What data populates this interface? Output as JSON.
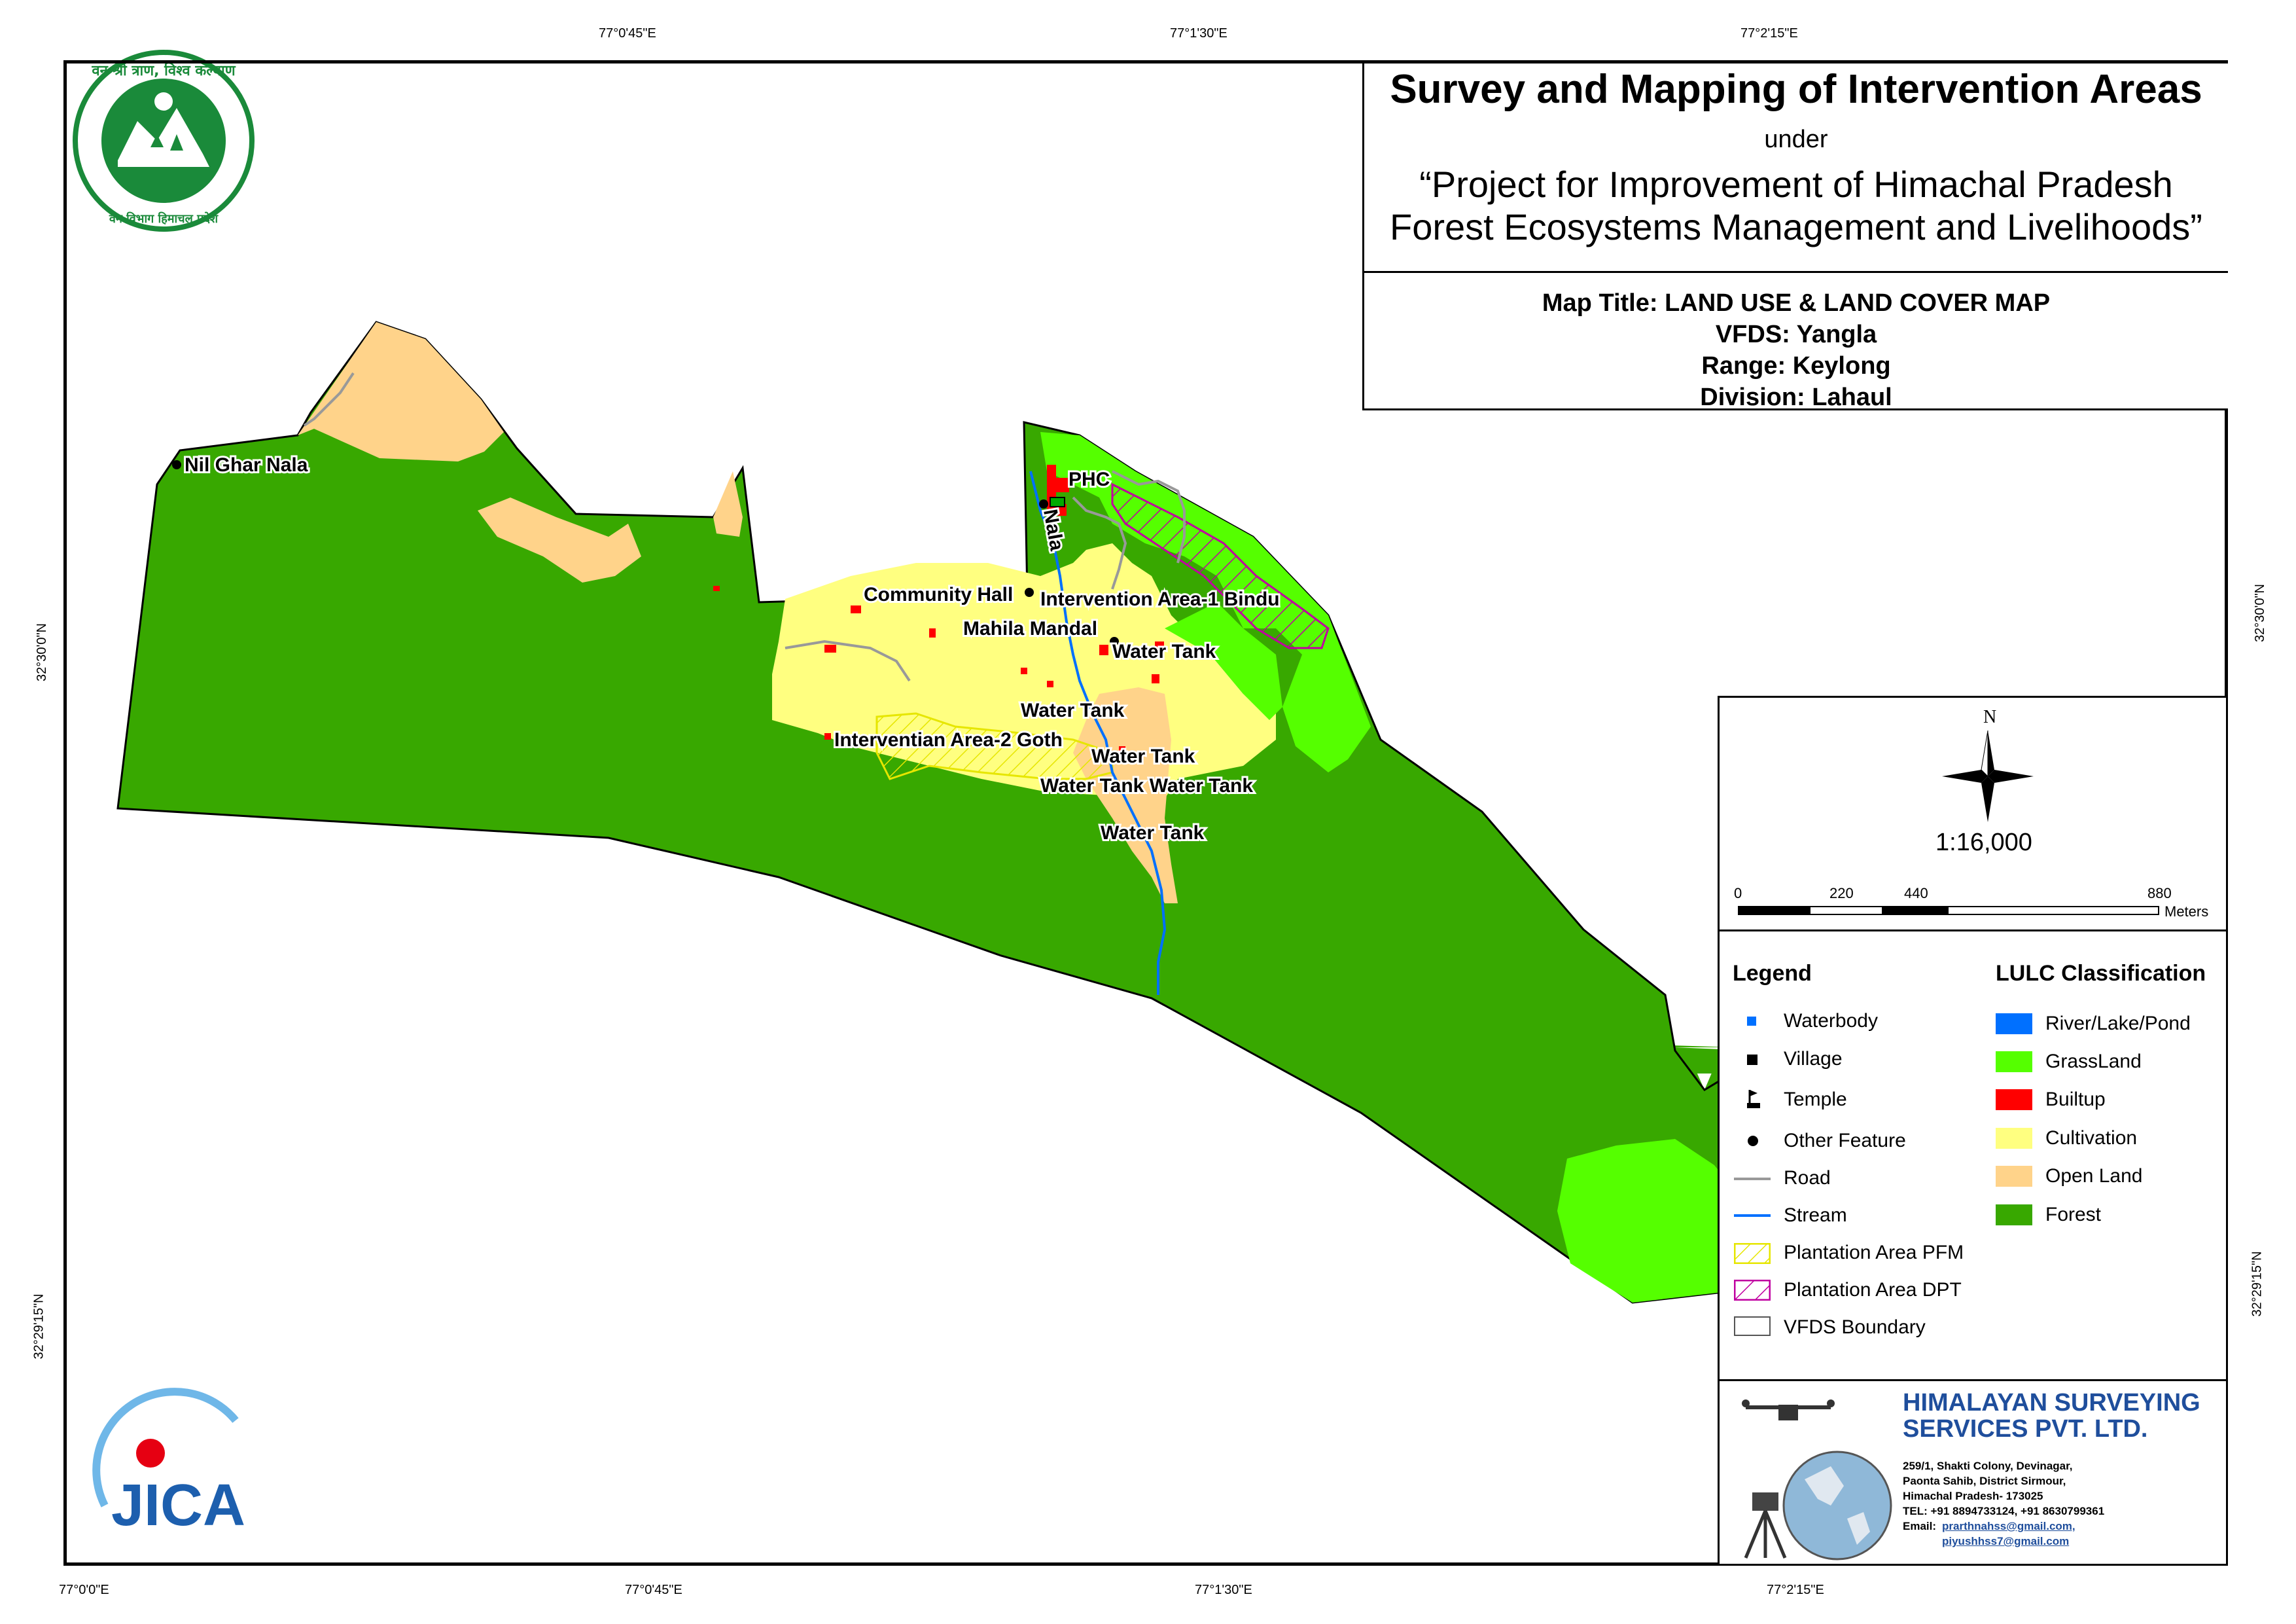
{
  "title": {
    "main": "Survey and Mapping of Intervention Areas",
    "under": "under",
    "project_line1": "“Project for Improvement of Himachal Pradesh",
    "project_line2": "Forest Ecosystems Management and Livelihoods”"
  },
  "map_info": {
    "map_title": "Map Title: LAND USE & LAND COVER MAP",
    "vfds": "VFDS: Yangla",
    "range": "Range: Keylong",
    "division": "Division: Lahaul"
  },
  "graticule": {
    "top": [
      "77°0'45\"E",
      "77°1'30\"E",
      "77°2'15\"E"
    ],
    "bottom": [
      "77°0'0\"E",
      "77°0'45\"E",
      "77°1'30\"E",
      "77°2'15\"E"
    ],
    "left": [
      "32°30'0\"N",
      "32°29'15\"N"
    ],
    "right": [
      "32°30'0\"N",
      "32°29'15\"N"
    ]
  },
  "compass": {
    "north": "N"
  },
  "scale": {
    "ratio": "1:16,000",
    "ticks": [
      "0",
      "220",
      "440",
      "880"
    ],
    "unit": "Meters"
  },
  "legend": {
    "heading": "Legend",
    "items": [
      "Waterbody",
      "Village",
      "Temple",
      "Other Feature",
      "Road",
      "Stream",
      "Plantation Area PFM",
      "Plantation Area DPT",
      "VFDS Boundary"
    ]
  },
  "lulc": {
    "heading": "LULC Classification",
    "items": [
      {
        "label": "River/Lake/Pond",
        "color": "#0070ff"
      },
      {
        "label": "GrassLand",
        "color": "#55ff00"
      },
      {
        "label": "Builtup",
        "color": "#ff0000"
      },
      {
        "label": "Cultivation",
        "color": "#ffff80"
      },
      {
        "label": "Open Land",
        "color": "#ffd38a"
      },
      {
        "label": "Forest",
        "color": "#38a800"
      }
    ]
  },
  "map_labels": {
    "nil_ghar_nala": "Nil Ghar Nala",
    "phc": "PHC",
    "nala": "Nala",
    "community_hall": "Community Hall",
    "intervention_area_1": "Intervention Area-1 Bindu",
    "mahila_mandal": "Mahila Mandal",
    "water_tank_1": "Water Tank",
    "water_tank_2": "Water Tank",
    "intervention_area_2": "Interventian Area-2 Goth",
    "water_tank_3": "Water Tank",
    "water_tank_4": "Water Tank Water Tank",
    "water_tank_5": "Water Tank"
  },
  "company": {
    "name_line1": "HIMALAYAN SURVEYING",
    "name_line2": "SERVICES PVT. LTD.",
    "address1": "259/1, Shakti Colony, Devinagar,",
    "address2": "Paonta Sahib, District Sirmour,",
    "address3": "Himachal Pradesh- 173025",
    "tel": "TEL: +91 8894733124, +91 8630799361",
    "email_label": "Email:",
    "email1": "prarthnahss@gmail.com,",
    "email2": "piyushhss7@gmail.com"
  },
  "logos": {
    "forest_dept_seal": "वन श्री त्राण, विश्व कल्याण / वन विभाग हिमाचल प्रदेश",
    "jica": "JICA"
  },
  "colors": {
    "forest": "#38a800",
    "grassland": "#55ff00",
    "cultivation": "#ffff80",
    "open_land": "#ffd38a",
    "builtup": "#ff0000",
    "stream": "#0070ff",
    "road": "#999999",
    "pfm": "#e6e600",
    "dpt": "#c000a0",
    "company_blue": "#1f4e9c"
  }
}
